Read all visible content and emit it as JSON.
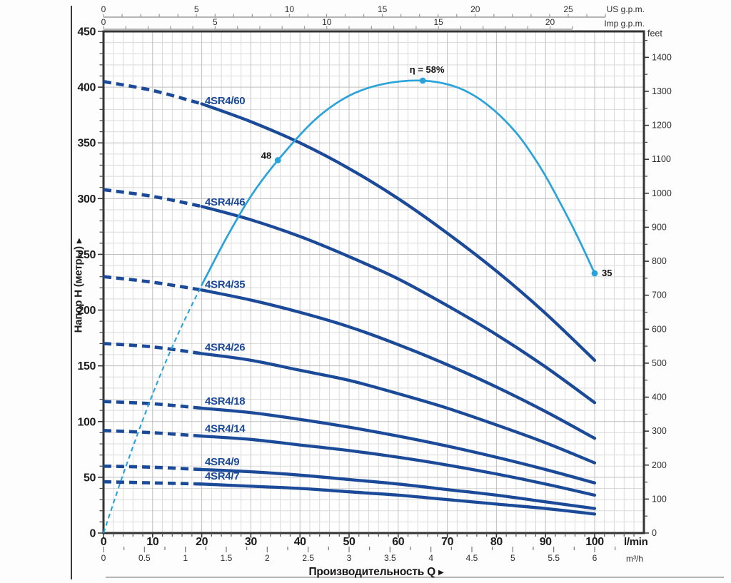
{
  "chart_data": {
    "type": "line",
    "description_labels": {
      "y_axis_title": "Напор H (метры)",
      "x_axis_title": "Производительность Q"
    },
    "xlim_lmin": [
      0,
      110
    ],
    "ylim_m": [
      0,
      450
    ],
    "grid": "on",
    "colors": {
      "pump_curve": "#1b4a98",
      "efficiency_curve": "#2aa3db",
      "grid_minor": "#dadada",
      "grid_major": "#bfbfbf",
      "plot_border": "#333333",
      "axis_gray": "#9b9b9b",
      "text_dark": "#1c1c1c"
    },
    "axes": {
      "x_top_us": {
        "unit": "US g.p.m.",
        "ticks": [
          0,
          5,
          10,
          15,
          20,
          25
        ],
        "minor_step": 1,
        "minor_max": 27,
        "lmin_per_unit": 3.785
      },
      "x_top_imp": {
        "unit": "Imp g.p.m.",
        "ticks": [
          0,
          5,
          10,
          15,
          20
        ],
        "minor_step": 1,
        "minor_max": 21,
        "lmin_per_unit": 4.546
      },
      "x_bottom": {
        "unit": "l/min",
        "title": "Производительность Q",
        "arrow": "▶",
        "ticks": [
          0,
          10,
          20,
          30,
          40,
          50,
          60,
          70,
          80,
          90,
          100
        ],
        "minor_step": 2,
        "minor_max": 108
      },
      "x_bottom_m3h": {
        "unit": "m³/h",
        "ticks": [
          0,
          0.5,
          1,
          1.5,
          2,
          2.5,
          3,
          3.5,
          4,
          4.5,
          5,
          5.5,
          6
        ],
        "minor_step": 0.25,
        "minor_max": 6.25,
        "lmin_per_unit": 16.6667
      },
      "y_left": {
        "title": "Напор H (метры)",
        "arrow": "▶",
        "ticks": [
          0,
          50,
          100,
          150,
          200,
          250,
          300,
          350,
          400,
          450
        ],
        "minor_step": 10,
        "minor_max": 440
      },
      "y_right": {
        "unit": "feet",
        "ticks": [
          0,
          100,
          200,
          300,
          400,
          500,
          600,
          700,
          800,
          900,
          1000,
          1100,
          1200,
          1300,
          1400
        ],
        "minor_step": 50,
        "minor_max": 1450,
        "m_per_unit": 0.3048
      }
    },
    "q_values": [
      0,
      10,
      20,
      30,
      40,
      50,
      60,
      70,
      80,
      90,
      100
    ],
    "dashed_until_q": 20,
    "series": [
      {
        "name": "4SR4/60",
        "h": [
          405,
          397,
          385,
          369,
          350,
          327,
          300,
          269,
          235,
          197,
          155
        ]
      },
      {
        "name": "4SR4/46",
        "h": [
          308,
          302,
          293,
          281,
          266,
          248,
          228,
          204,
          178,
          149,
          117
        ]
      },
      {
        "name": "4SR4/35",
        "h": [
          230,
          225,
          218,
          209,
          198,
          185,
          169,
          151,
          131,
          109,
          85
        ]
      },
      {
        "name": "4SR4/26",
        "h": [
          170,
          167,
          161,
          155,
          146,
          137,
          125,
          112,
          97,
          81,
          63
        ]
      },
      {
        "name": "4SR4/18",
        "h": [
          118,
          116,
          112,
          108,
          102,
          95,
          87,
          78,
          68,
          57,
          45
        ]
      },
      {
        "name": "4SR4/14",
        "h": [
          92,
          90,
          87,
          84,
          79,
          74,
          68,
          61,
          53,
          44,
          34
        ]
      },
      {
        "name": "4SR4/9",
        "h": [
          60,
          59,
          57,
          55,
          52,
          48,
          44,
          39,
          34,
          28,
          22
        ]
      },
      {
        "name": "4SR4/7",
        "h": [
          46,
          45,
          44,
          42,
          40,
          37,
          34,
          30,
          26,
          22,
          17
        ]
      }
    ],
    "efficiency": {
      "eta_offset": 4,
      "m_per_eta": 7.515,
      "dash_until_q": 20,
      "points": [
        [
          0,
          4
        ],
        [
          4,
          11
        ],
        [
          8,
          17.5
        ],
        [
          12,
          23.5
        ],
        [
          16,
          28.8
        ],
        [
          20,
          33.6
        ],
        [
          25,
          39.2
        ],
        [
          30,
          44.2
        ],
        [
          35.5,
          48.5
        ],
        [
          43,
          53.3
        ],
        [
          50,
          56.2
        ],
        [
          57,
          57.6
        ],
        [
          65,
          58
        ],
        [
          72,
          57.2
        ],
        [
          78,
          55.2
        ],
        [
          84,
          51.8
        ],
        [
          89,
          47.6
        ],
        [
          93,
          43.4
        ],
        [
          96.5,
          39.4
        ],
        [
          100,
          35
        ]
      ],
      "markers": [
        {
          "q": 35.5,
          "eta": 48.5,
          "label": "48",
          "side": "left"
        },
        {
          "q": 65,
          "eta": 58,
          "label": "η = 58%",
          "side": "top"
        },
        {
          "q": 100,
          "eta": 35,
          "label": "35",
          "side": "right"
        }
      ]
    }
  }
}
